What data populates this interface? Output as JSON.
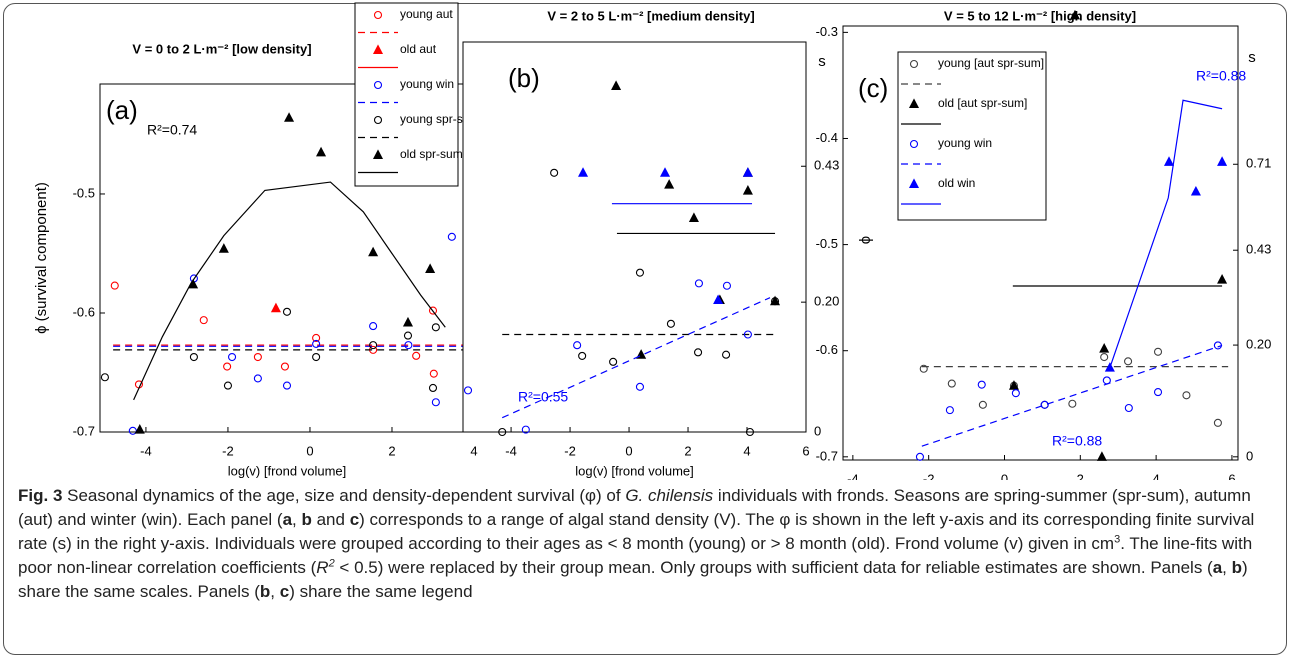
{
  "chart_data": [
    {
      "type": "scatter",
      "panel_label": "(a)",
      "title": "V = 0 to 2 L·m⁻² [low density]",
      "xlabel": "log(v) [frond volume]",
      "ylabel": "ϕ (survival component)",
      "xlim": [
        -5.12,
        4.0
      ],
      "ylim": [
        -0.7,
        -0.4076
      ],
      "xticks": [
        -4,
        -2,
        0,
        2,
        4
      ],
      "yticks": [
        -0.7,
        -0.6,
        -0.5
      ],
      "legend": "top-right",
      "series": [
        {
          "name": "young aut",
          "color": "#ff0000",
          "marker": "circle",
          "x": [
            -4.76,
            -4.17,
            -2.59,
            -2.02,
            -1.27,
            -0.61,
            0.15,
            1.54,
            2.59,
            3.02,
            3.0
          ],
          "values": [
            -0.577,
            -0.66,
            -0.606,
            -0.645,
            -0.637,
            -0.645,
            -0.621,
            -0.631,
            -0.636,
            -0.651,
            -0.598
          ],
          "fit": {
            "style": "dashed",
            "x": [
              -4.8,
              4.3
            ],
            "values": [
              -0.627,
              -0.627
            ]
          }
        },
        {
          "name": "old aut",
          "color": "#ff0000",
          "marker": "triangle",
          "x": [
            -0.83
          ],
          "values": [
            -0.596
          ],
          "fit": {
            "style": "solid"
          }
        },
        {
          "name": "young win",
          "color": "#0000ff",
          "marker": "circle",
          "x": [
            -4.32,
            -2.83,
            -1.9,
            -1.27,
            -0.56,
            0.15,
            1.54,
            2.4,
            3.07,
            3.46
          ],
          "values": [
            -0.699,
            -0.571,
            -0.637,
            -0.655,
            -0.661,
            -0.626,
            -0.611,
            -0.627,
            -0.675,
            -0.536
          ],
          "fit": {
            "style": "dashed",
            "x": [
              -4.8,
              4.3
            ],
            "values": [
              -0.628,
              -0.628
            ]
          }
        },
        {
          "name": "young spr-sum",
          "color": "#000000",
          "marker": "circle",
          "x": [
            -5.0,
            -2.83,
            -2.0,
            -0.56,
            0.15,
            1.54,
            2.39,
            3.07,
            3.0
          ],
          "values": [
            -0.654,
            -0.637,
            -0.661,
            -0.599,
            -0.637,
            -0.627,
            -0.619,
            -0.612,
            -0.663
          ],
          "fit": {
            "style": "dashed",
            "x": [
              -4.8,
              4.3
            ],
            "values": [
              -0.631,
              -0.631
            ]
          }
        },
        {
          "name": "old spr-sum",
          "color": "#000000",
          "marker": "triangle",
          "x": [
            -4.15,
            -2.85,
            -2.1,
            -0.51,
            0.27,
            1.54,
            2.39,
            2.93
          ],
          "values": [
            -0.698,
            -0.576,
            -0.546,
            -0.436,
            -0.465,
            -0.549,
            -0.608,
            -0.563
          ],
          "fit": {
            "style": "solid",
            "x": [
              -4.3,
              -3.6,
              -2.9,
              -2.1,
              -1.1,
              0.5,
              1.3,
              2.0,
              2.7,
              3.3
            ],
            "values": [
              -0.673,
              -0.62,
              -0.575,
              -0.535,
              -0.497,
              -0.49,
              -0.515,
              -0.55,
              -0.585,
              -0.612
            ]
          }
        }
      ],
      "annotations": [
        {
          "text": "R²=0.74",
          "color": "#000000"
        }
      ]
    },
    {
      "type": "scatter",
      "panel_label": "(b)",
      "title": "V = 2 to 5 L·m⁻² [medium density]",
      "xlabel": "log(v) [frond volume]",
      "y2label": "s",
      "xlim": [
        -5.63,
        6
      ],
      "ylim": [
        -0.7,
        -0.372
      ],
      "xticks": [
        -4,
        -2,
        0,
        2,
        4,
        6
      ],
      "y2ticks": [
        0.43,
        {
          "value": 0.2,
          "label": "0.20"
        },
        0
      ],
      "y2tick_at": [
        -0.4765,
        -0.5908,
        -0.7
      ],
      "series": [
        {
          "color": "#000000",
          "marker": "circle",
          "x": [
            -4.3,
            -2.54,
            -1.59,
            -0.54,
            0.37,
            1.42,
            2.34,
            3.29,
            4.1,
            4.95
          ],
          "values": [
            -0.7,
            -0.482,
            -0.636,
            -0.641,
            -0.566,
            -0.609,
            -0.633,
            -0.635,
            -0.7,
            -0.59
          ],
          "fit": {
            "style": "dashed",
            "x": [
              -4.3,
              5.0
            ],
            "values": [
              -0.618,
              -0.618
            ]
          }
        },
        {
          "color": "#000000",
          "marker": "triangle",
          "x": [
            -0.44,
            0.41,
            1.36,
            2.2,
            3.08,
            4.03,
            4.03,
            4.95
          ],
          "values": [
            -0.409,
            -0.635,
            -0.492,
            -0.52,
            -0.589,
            -0.482,
            -0.497,
            -0.59
          ],
          "fit": {
            "style": "solid",
            "x": [
              -0.41,
              4.95
            ],
            "values": [
              -0.533,
              -0.533
            ]
          }
        },
        {
          "color": "#0000ff",
          "marker": "circle",
          "x": [
            -5.46,
            -3.5,
            -1.76,
            0.37,
            2.37,
            3.32,
            4.03
          ],
          "values": [
            -0.665,
            -0.698,
            -0.627,
            -0.662,
            -0.575,
            -0.577,
            -0.618
          ],
          "fit": {
            "style": "dashed",
            "x": [
              -4.3,
              4.78
            ],
            "values": [
              -0.688,
              -0.587
            ]
          }
        },
        {
          "color": "#0000ff",
          "marker": "triangle",
          "x": [
            -1.56,
            1.22,
            3.02,
            4.03
          ],
          "values": [
            -0.482,
            -0.482,
            -0.589,
            -0.482
          ],
          "fit": {
            "style": "solid",
            "x": [
              -0.58,
              4.17
            ],
            "values": [
              -0.508,
              -0.508
            ]
          }
        }
      ],
      "annotations": [
        {
          "text": "R²=0.55",
          "color": "#0000ff"
        }
      ]
    },
    {
      "type": "scatter",
      "panel_label": "(c)",
      "title": "V = 5 to 12 L·m⁻² [high density]",
      "xlabel": "log(v) [frond volume]",
      "ylabel": "ϕ",
      "y2label": "s",
      "xlim": [
        -4.26,
        6.16
      ],
      "ylim": [
        -0.703,
        -0.294
      ],
      "xticks": [
        -4,
        -2,
        0,
        2,
        4,
        6
      ],
      "yticks": [
        -0.7,
        -0.6,
        -0.5,
        -0.4,
        -0.3
      ],
      "y2ticks": [
        0.71,
        0.43,
        {
          "value": 0.2,
          "label": "0.20"
        },
        0
      ],
      "y2tick_at": [
        -0.4243,
        -0.5053,
        -0.5947,
        -0.7
      ],
      "legend": "top-left",
      "series": [
        {
          "name": "young [aut spr-sum]",
          "color": "#404040",
          "marker": "circle",
          "x": [
            -2.13,
            -1.39,
            -0.57,
            0.25,
            1.06,
            1.79,
            2.63,
            3.26,
            4.05,
            4.8,
            5.63
          ],
          "values": [
            -0.617,
            -0.631,
            -0.651,
            -0.633,
            -0.651,
            -0.65,
            -0.606,
            -0.61,
            -0.601,
            -0.642,
            -0.668
          ],
          "fit": {
            "style": "dashed",
            "x": [
              -2.18,
              5.9
            ],
            "values": [
              -0.615,
              -0.615
            ]
          }
        },
        {
          "name": "old [aut spr-sum]",
          "color": "#000000",
          "marker": "triangle",
          "x": [
            0.25,
            1.86,
            2.63,
            2.57,
            5.74
          ],
          "values": [
            -0.633,
            -0.284,
            -0.598,
            -0.7,
            -0.533
          ],
          "fit": {
            "style": "solid",
            "x": [
              0.22,
              5.74
            ],
            "values": [
              -0.539,
              -0.539
            ]
          }
        },
        {
          "name": "young win",
          "color": "#0000ff",
          "marker": "circle",
          "x": [
            -2.23,
            -1.44,
            -0.6,
            0.3,
            1.06,
            2.7,
            3.28,
            4.05,
            5.63
          ],
          "values": [
            -0.7,
            -0.656,
            -0.632,
            -0.64,
            -0.651,
            -0.628,
            -0.654,
            -0.639,
            -0.595
          ],
          "fit": {
            "style": "dashed",
            "x": [
              -2.18,
              5.74
            ],
            "values": [
              -0.69,
              -0.595
            ]
          }
        },
        {
          "name": "old win",
          "color": "#0000ff",
          "marker": "triangle",
          "x": [
            2.78,
            4.34,
            5.05,
            5.74
          ],
          "values": [
            -0.616,
            -0.422,
            -0.45,
            -0.422
          ],
          "fit": {
            "style": "solid",
            "x": [
              2.78,
              4.32,
              4.71,
              5.74
            ],
            "values": [
              -0.616,
              -0.456,
              -0.364,
              -0.372
            ]
          }
        }
      ],
      "annotations": [
        {
          "text": "R²=0.88",
          "color": "#0000ff"
        },
        {
          "text": "R²=0.88",
          "color": "#0000ff"
        }
      ]
    }
  ],
  "caption": [
    {
      "text": "Fig. 3",
      "bold": true
    },
    {
      "text": " Seasonal dynamics of the age, size and density-dependent survival (φ) of "
    },
    {
      "text": "G. chilensis",
      "italic": true
    },
    {
      "text": " individuals with fronds. Seasons are spring-summer (spr-sum), autumn (aut) and winter (win). Each panel ("
    },
    {
      "text": "a",
      "bold": true
    },
    {
      "text": ", "
    },
    {
      "text": "b",
      "bold": true
    },
    {
      "text": " and "
    },
    {
      "text": "c",
      "bold": true
    },
    {
      "text": ") corresponds to a range of algal stand density (V). The φ is shown in the left y-axis and its corresponding finite survival rate (s) in the right y-axis. Individuals were grouped according to their ages as < 8 month (young) or > 8 month (old). Frond volume (v) given in cm"
    },
    {
      "text": "3",
      "sup": true
    },
    {
      "text": ". The line-fits with poor non-linear correlation coefficients ("
    },
    {
      "text": "R",
      "italic": true
    },
    {
      "text": "2",
      "sup": true,
      "italic": true
    },
    {
      "text": " < 0.5) were replaced by their group mean. Only groups with sufficient data for reliable estimates are shown. Panels ("
    },
    {
      "text": "a",
      "bold": true
    },
    {
      "text": ", "
    },
    {
      "text": "b",
      "bold": true
    },
    {
      "text": ") share the same scales. Panels ("
    },
    {
      "text": "b",
      "bold": true
    },
    {
      "text": ", "
    },
    {
      "text": "c",
      "bold": true
    },
    {
      "text": ") share the same legend"
    }
  ]
}
